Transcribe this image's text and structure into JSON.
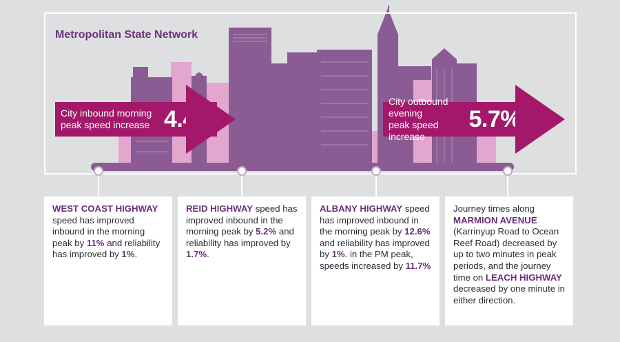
{
  "title": "Metropolitan State Network",
  "inbound": {
    "label_line1": "City inbound morning",
    "label_line2": "peak speed increase",
    "value": "4.4%"
  },
  "outbound": {
    "label_line1": "City outbound evening",
    "label_line2": "peak speed increase",
    "value": "5.7%"
  },
  "cards": [
    {
      "road": "WEST COAST HIGHWAY",
      "t1": " speed has improved inbound in the morning peak by ",
      "v1": "11%",
      "t2": " and reliability has improved by ",
      "v2": "1%",
      "t3": "."
    },
    {
      "road": "REID HIGHWAY",
      "t1": " speed has improved inbound in the morning peak by ",
      "v1": "5.2%",
      "t2": " and reliability has improved by ",
      "v2": "1.7%",
      "t3": "."
    },
    {
      "road": "ALBANY HIGHWAY",
      "t1": " speed has improved inbound in the morning peak by ",
      "v1": "12.6%",
      "t2": " and reliability has improved by ",
      "v2": "1%",
      "t3": ". in the PM peak, speeds increased by ",
      "v3": "11.7%"
    },
    {
      "t0": "Journey times along ",
      "road": "MARMION AVENUE",
      "t1": " (Karrinyup Road to Ocean Reef Road) decreased by up to two minutes in peak periods, and the journey time on ",
      "road2": "LEACH HIGHWAY",
      "t2": " decreased by one minute in either direction."
    }
  ],
  "colors": {
    "purple": "#8a5c93",
    "dark_purple": "#6a3178",
    "magenta": "#a3186a",
    "pink": "#e3a6cf",
    "background": "#dedfe1"
  }
}
